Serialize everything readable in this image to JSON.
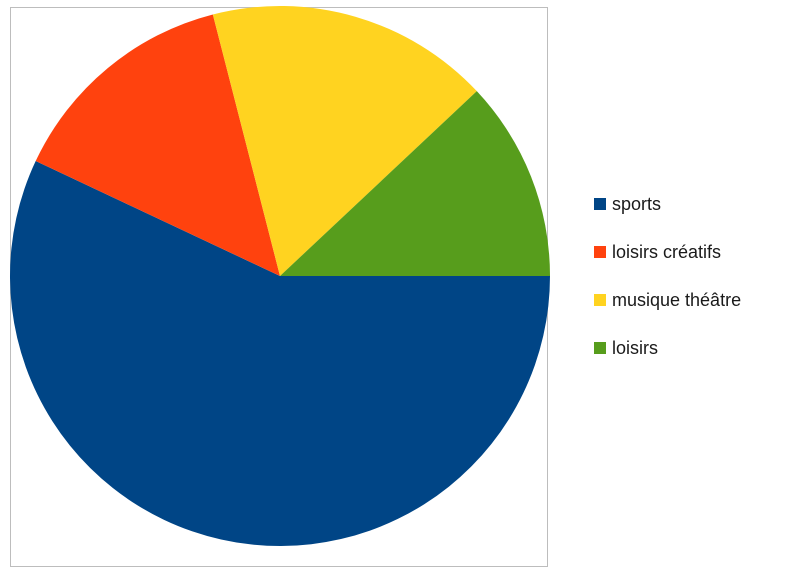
{
  "chart_data": {
    "type": "pie",
    "title": "",
    "legend_position": "right",
    "start_angle_deg": 0,
    "direction": "clockwise",
    "slices": [
      {
        "label": "sports",
        "value": 57,
        "color": "#004586"
      },
      {
        "label": "loisirs créatifs",
        "value": 14,
        "color": "#ff420e"
      },
      {
        "label": "musique théâtre",
        "value": 17,
        "color": "#ffd320"
      },
      {
        "label": "loisirs",
        "value": 12,
        "color": "#579d1c"
      }
    ]
  }
}
